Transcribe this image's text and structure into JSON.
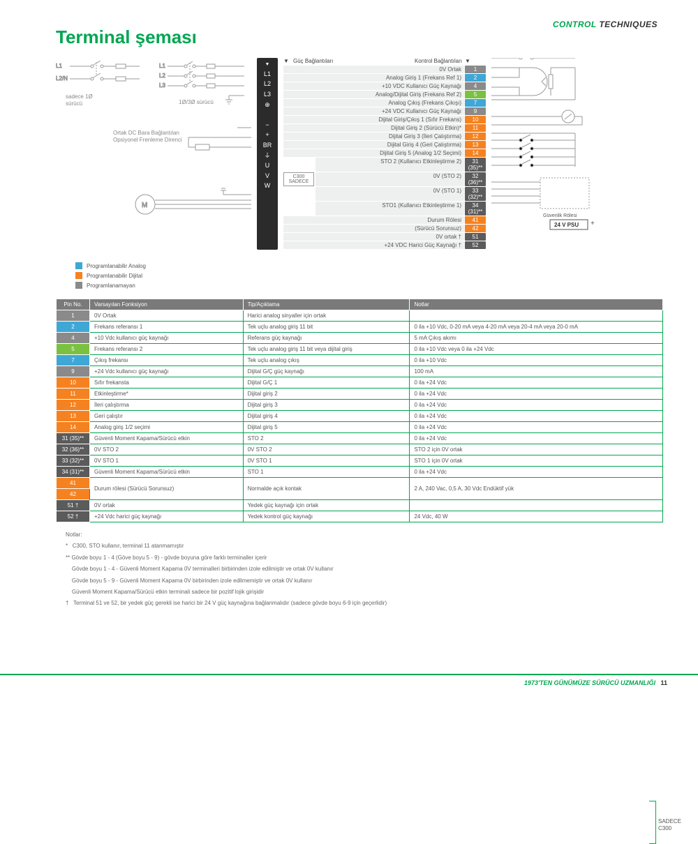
{
  "brand": {
    "p1": "CONTROL ",
    "p2": "TECHNIQUES"
  },
  "title": "Terminal şeması",
  "leftLabels": {
    "l1": "L1",
    "l2": "L2/N",
    "note1": "sadece 1Ø\nsürücü",
    "l1b": "L1",
    "l2b": "L2",
    "l3b": "L3",
    "note2": "1Ø/3Ø sürücü",
    "dc": "Ortak DC Bara Bağlantıları\nOpsiyonel Frenleme Direnci",
    "m": "M"
  },
  "powerHead": {
    "l": "Güç Bağlantıları",
    "r": "Kontrol Bağlantıları"
  },
  "powerPins": [
    "L1",
    "L2",
    "L3",
    "⊕",
    "",
    "−",
    "+",
    "BR",
    "⏚",
    "U",
    "V",
    "W"
  ],
  "termColors": {
    "analog": "#3fa7d6",
    "digital": "#f58220",
    "green": "#7ac142",
    "gray": "#8a8a8a",
    "dark": "#5b5b5b"
  },
  "terms": [
    {
      "lbl": "0V Ortak",
      "n": "1",
      "c": "gray"
    },
    {
      "lbl": "Analog Giriş 1 (Frekans Ref 1)",
      "n": "2",
      "c": "analog"
    },
    {
      "lbl": "+10 VDC Kullanıcı Güç Kaynağı",
      "n": "4",
      "c": "gray"
    },
    {
      "lbl": "Analog/Dijital Giriş (Frekans Ref 2)",
      "n": "5",
      "c": "green"
    },
    {
      "lbl": "Analog Çıkış (Frekans Çıkışı)",
      "n": "7",
      "c": "analog"
    },
    {
      "lbl": "+24 VDC Kullanıcı Güç Kaynağı",
      "n": "9",
      "c": "gray"
    },
    {
      "lbl": "Dijital Giriş/Çıkış 1 (Sıfır Frekans)",
      "n": "10",
      "c": "digital"
    },
    {
      "lbl": "Dijital Giriş 2 (Sürücü Etkin)*",
      "n": "11",
      "c": "digital"
    },
    {
      "lbl": "Dijital Giriş 3 (İleri Çalıştırma)",
      "n": "12",
      "c": "digital"
    },
    {
      "lbl": "Dijital Giriş 4 (Geri Çalıştırma)",
      "n": "13",
      "c": "digital"
    },
    {
      "lbl": "Dijital Giriş 5 (Analog 1/2 Seçimi)",
      "n": "14",
      "c": "digital"
    },
    {
      "lbl": "STO 2 (Kullanıcı Etkinleştirme 2)",
      "n": "31 (35)**",
      "c": "dark"
    },
    {
      "lbl": "0V (STO 2)",
      "n": "32 (36)**",
      "c": "dark"
    },
    {
      "lbl": "0V (STO 1)",
      "n": "33 (32)**",
      "c": "dark"
    },
    {
      "lbl": "STO1 (Kullanıcı Etkinleştirme 1)",
      "n": "34 (31)**",
      "c": "dark"
    },
    {
      "lbl": "Durum Rölesi",
      "n": "41",
      "c": "digital"
    },
    {
      "lbl": "(Sürücü Sorunsuz)",
      "n": "42",
      "c": "digital"
    },
    {
      "lbl": "0V ortak    †",
      "n": "51",
      "c": "dark"
    },
    {
      "lbl": "+24 VDC Harici Güç Kaynağı    †",
      "n": "52",
      "c": "dark"
    }
  ],
  "c300": "C300\nSADECE",
  "safety": {
    "t": "Güvenlik Rölesi",
    "psu": "24 V PSU"
  },
  "legend": [
    {
      "c": "#3fa7d6",
      "t": "Programlanabilir Analog"
    },
    {
      "c": "#f58220",
      "t": "Programlanabilir Dijital"
    },
    {
      "c": "#8a8a8a",
      "t": "Programlanamayan"
    }
  ],
  "table": {
    "headers": [
      "Pin No.",
      "Varsayılan Fonksiyon",
      "Tip/Açıklama",
      "Notlar"
    ],
    "rows": [
      {
        "pin": "1",
        "c": "gray",
        "f": "0V Ortak",
        "t": "Harici analog sinyaller için ortak",
        "n": ""
      },
      {
        "pin": "2",
        "c": "analog",
        "f": "Frekans referansı 1",
        "t": "Tek uçlu analog giriş 11 bit",
        "n": "0 ila +10 Vdc, 0-20 mA veya 4-20 mA veya 20-4 mA veya 20-0 mA"
      },
      {
        "pin": "4",
        "c": "gray",
        "f": "+10 Vdc kullanıcı güç kaynağı",
        "t": "Referans güç kaynağı",
        "n": "5 mA Çıkış akımı"
      },
      {
        "pin": "5",
        "c": "green",
        "f": "Frekans referansı 2",
        "t": "Tek uçlu analog giriş 11 bit veya dijital giriş",
        "n": "0 ila +10 Vdc veya 0 ila +24 Vdc"
      },
      {
        "pin": "7",
        "c": "analog",
        "f": "Çıkış frekansı",
        "t": "Tek uçlu analog çıkış",
        "n": "0 ila +10 Vdc"
      },
      {
        "pin": "9",
        "c": "gray",
        "f": "+24 Vdc kullanıcı güç kaynağı",
        "t": "Dijital G/Ç güç kaynağı",
        "n": "100 mA"
      },
      {
        "pin": "10",
        "c": "digital",
        "f": "Sıfır frekansta",
        "t": "Dijital G/Ç 1",
        "n": "0 ila +24 Vdc"
      },
      {
        "pin": "11",
        "c": "digital",
        "f": "Etkinleştirme*",
        "t": "Dijital giriş 2",
        "n": "0 ila +24 Vdc"
      },
      {
        "pin": "12",
        "c": "digital",
        "f": "İleri çalıştırma",
        "t": "Dijital giriş 3",
        "n": "0 ila +24 Vdc"
      },
      {
        "pin": "13",
        "c": "digital",
        "f": "Geri çalıştır",
        "t": "Dijital giriş 4",
        "n": "0 ila +24 Vdc"
      },
      {
        "pin": "14",
        "c": "digital",
        "f": "Analog giriş 1/2 seçimi",
        "t": "Dijital giriş 5",
        "n": "0 ila +24 Vdc"
      },
      {
        "pin": "31 (35)**",
        "c": "dark",
        "f": "Güvenli Moment Kapama/Sürücü etkin",
        "t": "STO 2",
        "n": "0 ila +24 Vdc"
      },
      {
        "pin": "32 (36)**",
        "c": "dark",
        "f": "0V STO 2",
        "t": "0V STO 2",
        "n": "STO 2 için 0V ortak"
      },
      {
        "pin": "33 (32)**",
        "c": "dark",
        "f": "0V STO 1",
        "t": "0V STO 1",
        "n": "STO 1 için 0V ortak"
      },
      {
        "pin": "34 (31)**",
        "c": "dark",
        "f": "Güvenli Moment Kapama/Sürücü etkin",
        "t": "STO 1",
        "n": "0 ila +24 Vdc"
      },
      {
        "pin": "41",
        "c": "digital",
        "f": "Durum rölesi (Sürücü Sorunsuz)",
        "t": "Normalde açık kontak",
        "n": "2 A, 240 Vac, 0,5 A, 30 Vdc Endüktif yük",
        "rs": 2
      },
      {
        "pin": "42",
        "c": "digital"
      },
      {
        "pin": "51 †",
        "c": "dark",
        "f": "0V ortak",
        "t": "Yedek güç kaynağı için ortak",
        "n": ""
      },
      {
        "pin": "52 †",
        "c": "dark",
        "f": "+24 Vdc harici güç kaynağı",
        "t": "Yedek kontrol güç kaynağı",
        "n": "24 Vdc, 40 W"
      }
    ]
  },
  "bracket": "SADECE\nC300",
  "notes": {
    "h": "Notlar:",
    "lines": [
      "*   C300, STO kullanır, terminal 11 atanmamıştır",
      "** Gövde boyu 1 - 4 (Göve boyu 5 - 9) - gövde boyuna göre farklı terminaller içerir",
      "    Gövde boyu 1 - 4 - Güvenli Moment Kapama 0V terminalleri birbirinden izole edilmiştir ve ortak 0V kullanır",
      "    Gövde boyu 5 - 9 - Güvenli Moment Kapama 0V birbirinden izole edilmemiştir ve ortak 0V kullanır",
      "    Güvenli Moment Kapama/Sürücü etkin terminali sadece bir pozitif lojik girişidir",
      "†   Terminal 51 ve 52, bir yedek güç gerekli ise harici bir 24 V güç kaynağına bağlanmalıdır (sadece gövde boyu 6-9 için geçerlidir)"
    ]
  },
  "footer": {
    "t": "1973'TEN GÜNÜMÜZE SÜRÜCÜ UZMANLIĞI",
    "p": "11"
  }
}
